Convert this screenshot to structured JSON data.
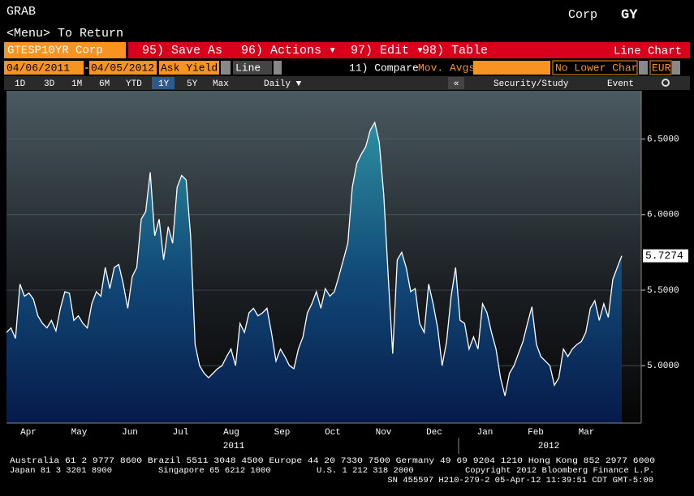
{
  "header": {
    "function": "GRAB",
    "yellow_key": "Corp",
    "site": "GY",
    "menu": "<Menu> To Return"
  },
  "toolbar": {
    "security": "GTESP10YR Corp",
    "actions": [
      "95) Save As",
      "96) Actions ▾",
      "97) Edit ▾",
      "98) Table"
    ],
    "view": "Line Chart"
  },
  "settings": {
    "start": "04/06/2011",
    "dash": "-",
    "end": "04/05/2012",
    "field": "Ask Yield",
    "style": "Line",
    "compare": "11) Compare",
    "study": "Mov. Avgs",
    "lower": "No Lower Char",
    "currency": "EUR"
  },
  "periods": {
    "buttons": [
      "1D",
      "3D",
      "1M",
      "6M",
      "YTD",
      "1Y",
      "5Y",
      "Max"
    ],
    "selected": "1Y",
    "frequency": "Daily ▼",
    "collapse": "«",
    "study_button": "Security/Study",
    "event_button": "Event"
  },
  "chart_data": {
    "type": "area",
    "color": "#ffffff",
    "months": [
      "Apr",
      "May",
      "Jun",
      "Jul",
      "Aug",
      "Sep",
      "Oct",
      "Nov",
      "Dec",
      "Jan",
      "Feb",
      "Mar"
    ],
    "years": [
      "2011",
      "2012"
    ],
    "series": [
      {
        "name": "GTESP10YR Corp",
        "color": "#ffffff",
        "values": [
          5.22,
          5.25,
          5.18,
          5.54,
          5.46,
          5.48,
          5.44,
          5.33,
          5.28,
          5.25,
          5.3,
          5.23,
          5.38,
          5.49,
          5.48,
          5.3,
          5.33,
          5.28,
          5.25,
          5.41,
          5.49,
          5.46,
          5.65,
          5.51,
          5.65,
          5.67,
          5.54,
          5.38,
          5.59,
          5.65,
          5.97,
          6.02,
          6.28,
          5.86,
          5.97,
          5.7,
          5.92,
          5.81,
          6.18,
          6.26,
          6.23,
          5.86,
          5.14,
          5.0,
          4.95,
          4.92,
          4.95,
          4.98,
          5.0,
          5.06,
          5.11,
          5.0,
          5.28,
          5.22,
          5.35,
          5.38,
          5.33,
          5.35,
          5.38,
          5.22,
          5.03,
          5.11,
          5.06,
          5.0,
          4.98,
          5.11,
          5.19,
          5.35,
          5.41,
          5.49,
          5.38,
          5.51,
          5.46,
          5.49,
          5.59,
          5.7,
          5.81,
          6.18,
          6.34,
          6.4,
          6.45,
          6.56,
          6.61,
          6.48,
          6.13,
          5.59,
          5.08,
          5.7,
          5.75,
          5.65,
          5.49,
          5.51,
          5.28,
          5.22,
          5.54,
          5.41,
          5.25,
          5.0,
          5.16,
          5.46,
          5.65,
          5.3,
          5.28,
          5.11,
          5.19,
          5.11,
          5.41,
          5.35,
          5.22,
          5.11,
          4.92,
          4.8,
          4.95,
          5.0,
          5.08,
          5.16,
          5.28,
          5.39,
          5.14,
          5.06,
          5.03,
          5.0,
          4.87,
          4.92,
          5.11,
          5.06,
          5.11,
          5.14,
          5.16,
          5.22,
          5.38,
          5.43,
          5.3,
          5.41,
          5.32,
          5.57,
          5.65,
          5.7274
        ]
      }
    ],
    "ylim": [
      4.62,
      6.82
    ],
    "yticks": [
      {
        "value": 5.0,
        "label": "5.0000"
      },
      {
        "value": 5.5,
        "label": "5.5000"
      },
      {
        "value": 6.0,
        "label": "6.0000"
      },
      {
        "value": 6.5,
        "label": "6.5000"
      }
    ],
    "grid": true
  },
  "footer": {
    "line1": "Australia 61 2 9777 8600 Brazil 5511 3048 4500 Europe 44 20 7330 7500 Germany 49 69 9204 1210 Hong Kong 852 2977 6000",
    "line2": [
      "Japan 81 3 3201 8900",
      "Singapore 65 6212 1000",
      "U.S. 1 212 318 2000",
      "Copyright 2012 Bloomberg Finance L.P."
    ],
    "line3": "SN 455597 H210-279-2 05-Apr-12 11:39:51 CDT  GMT-5:00"
  }
}
